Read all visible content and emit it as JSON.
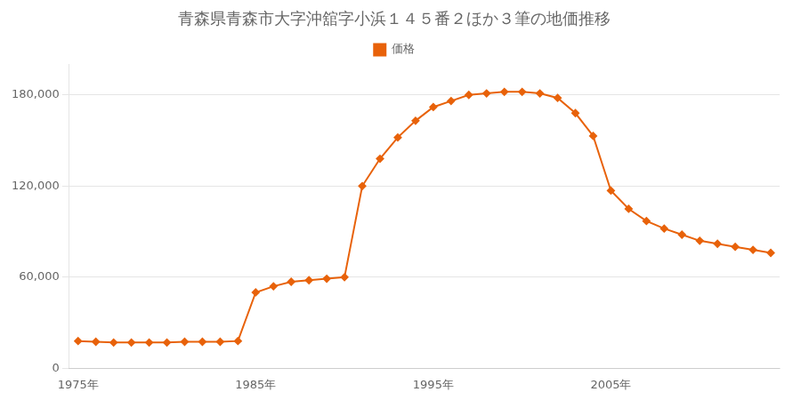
{
  "chart_data": {
    "type": "line",
    "title": "青森県青森市大字沖舘字小浜１４５番２ほか３筆の地価推移",
    "x": [
      1975,
      1976,
      1977,
      1978,
      1979,
      1980,
      1981,
      1982,
      1983,
      1984,
      1985,
      1986,
      1987,
      1988,
      1989,
      1990,
      1991,
      1992,
      1993,
      1994,
      1995,
      1996,
      1997,
      1998,
      1999,
      2000,
      2001,
      2002,
      2003,
      2004,
      2005,
      2006,
      2007,
      2008,
      2009,
      2010,
      2011,
      2012,
      2013,
      2014
    ],
    "series": [
      {
        "name": "価格",
        "color": "#e8620a",
        "marker": "diamond",
        "values": [
          18000,
          17500,
          17000,
          17000,
          17000,
          17000,
          17500,
          17500,
          17500,
          18000,
          50000,
          54000,
          57000,
          58000,
          59000,
          60000,
          120000,
          138000,
          152000,
          163000,
          172000,
          176000,
          180000,
          181000,
          182000,
          182000,
          181000,
          178000,
          168000,
          153000,
          117000,
          105000,
          97000,
          92000,
          88000,
          84000,
          82000,
          80000,
          78000,
          76000
        ]
      }
    ],
    "xlim": [
      1974.5,
      2014.5
    ],
    "xticks": [
      {
        "value": 1975,
        "label": "1975年"
      },
      {
        "value": 1985,
        "label": "1985年"
      },
      {
        "value": 1995,
        "label": "1995年"
      },
      {
        "value": 2005,
        "label": "2005年"
      }
    ],
    "ylim": [
      0,
      200000
    ],
    "yticks": [
      0,
      {
        "value": 60000,
        "label": "60,000"
      },
      {
        "value": 120000,
        "label": "120,000"
      },
      {
        "value": 180000,
        "label": "180,000"
      }
    ],
    "grid": "y",
    "legend": "top"
  }
}
